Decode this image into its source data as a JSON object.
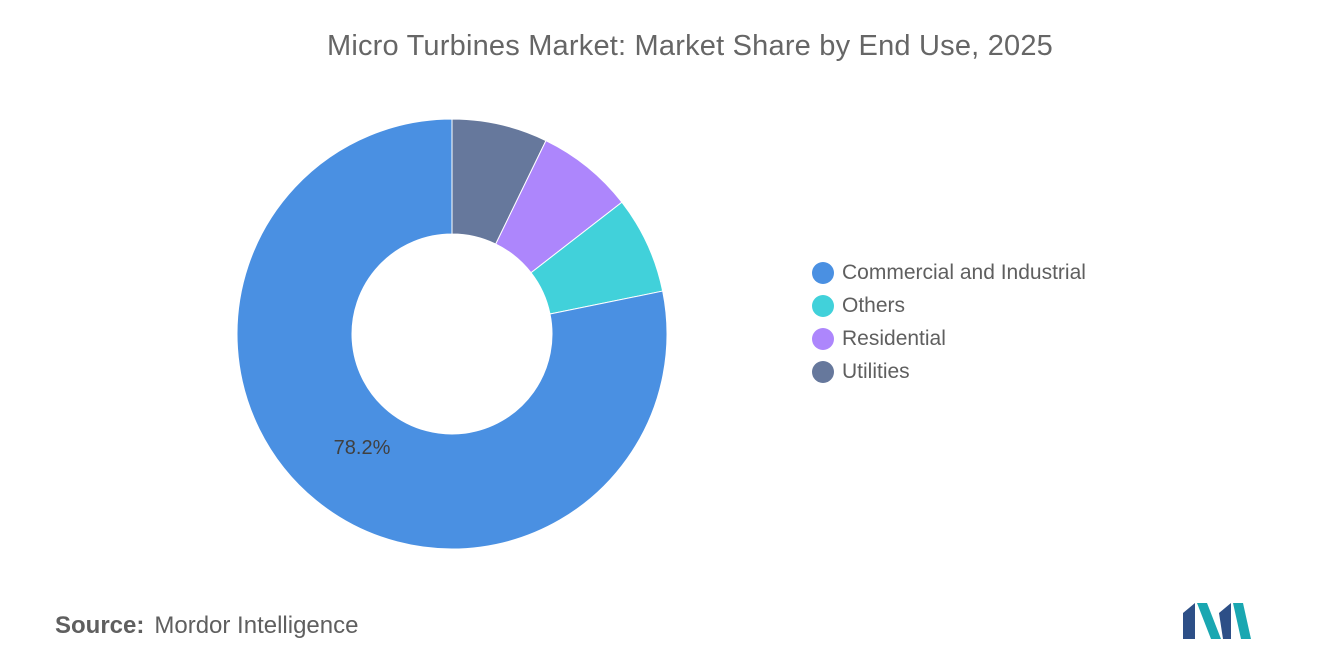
{
  "chart_data": {
    "type": "pie",
    "title": "Micro Turbines Market: Market Share by End Use, 2025",
    "categories": [
      "Commercial and Industrial",
      "Others",
      "Residential",
      "Utilities"
    ],
    "values": [
      78.2,
      7.3,
      7.3,
      7.2
    ],
    "colors": [
      "#4a90e2",
      "#41d1da",
      "#ad86fc",
      "#66789c"
    ],
    "data_labels": [
      "78.2%",
      "",
      "",
      ""
    ],
    "donut": true,
    "legend": "right",
    "slice_order_from_top_clockwise": [
      "Utilities",
      "Residential",
      "Others",
      "Commercial and Industrial"
    ]
  },
  "source": {
    "label": "Source:",
    "text": "Mordor Intelligence"
  },
  "logo": {
    "colors": [
      "#1aa7b1",
      "#2d4f87"
    ]
  }
}
